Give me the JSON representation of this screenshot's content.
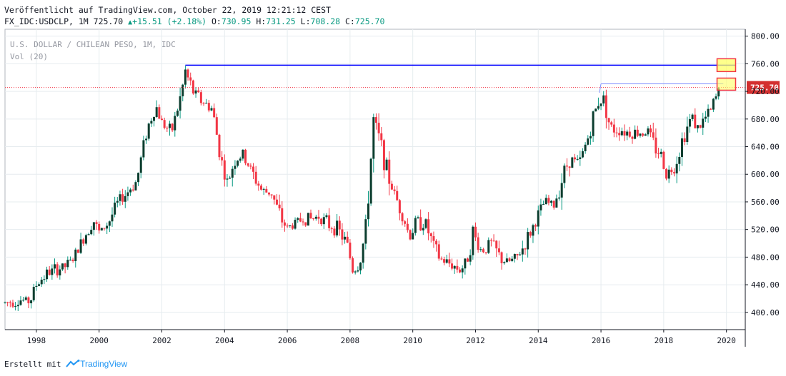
{
  "header": {
    "published": "Veröffentlicht auf TradingView.com, October 22, 2019 12:21:12 CEST",
    "symbol_interval": "FX_IDC:USDCLP, 1M",
    "last": "725.70",
    "change": "+15.51",
    "change_pct": "(+2.18%)",
    "o_label": "O:",
    "o_value": "730.95",
    "h_label": "H:",
    "h_value": "731.25",
    "l_label": "L:",
    "l_value": "708.28",
    "c_label": "C:",
    "c_value": "725.70"
  },
  "legend": {
    "title": "U.S. DOLLAR / CHILEAN PESO, 1M, IDC",
    "volume": "Vol (20)"
  },
  "footer": {
    "created_with": "Erstellt mit",
    "brand": "TradingView"
  },
  "colors": {
    "up": "#089981",
    "down": "#f23645",
    "candle_up_body": "#0b3d2e",
    "grid": "#e6ecef",
    "resistance_line": "#0000ff",
    "highlight_fill": "#ffff66",
    "highlight_border": "#f23645",
    "last_price_label": "#d32f2f"
  },
  "chart_data": {
    "type": "candlestick",
    "title": "U.S. DOLLAR / CHILEAN PESO, 1M, IDC",
    "x_ticks": [
      "1998",
      "2000",
      "2002",
      "2004",
      "2006",
      "2008",
      "2010",
      "2012",
      "2014",
      "2016",
      "2018",
      "2020"
    ],
    "y_ticks": [
      "800.00",
      "760.00",
      "720.00",
      "680.00",
      "640.00",
      "600.00",
      "560.00",
      "520.00",
      "480.00",
      "440.00",
      "400.00"
    ],
    "ylim": [
      375,
      810
    ],
    "xlim": [
      1997.0,
      2020.6
    ],
    "last_price": 725.7,
    "last_price_label": "725.70",
    "resistance_level": 758,
    "secondary_level": 731,
    "series_close": [
      [
        1997.0,
        414
      ],
      [
        1997.5,
        418
      ],
      [
        1997.8,
        416
      ],
      [
        1998.0,
        440
      ],
      [
        1998.3,
        455
      ],
      [
        1998.6,
        462
      ],
      [
        1998.9,
        466
      ],
      [
        1999.2,
        478
      ],
      [
        1999.5,
        506
      ],
      [
        1999.8,
        536
      ],
      [
        2000.0,
        515
      ],
      [
        2000.3,
        530
      ],
      [
        2000.6,
        560
      ],
      [
        2000.9,
        574
      ],
      [
        2001.2,
        590
      ],
      [
        2001.5,
        660
      ],
      [
        2001.8,
        700
      ],
      [
        2002.0,
        676
      ],
      [
        2002.3,
        660
      ],
      [
        2002.6,
        712
      ],
      [
        2002.75,
        748
      ],
      [
        2003.0,
        720
      ],
      [
        2003.3,
        705
      ],
      [
        2003.6,
        695
      ],
      [
        2003.9,
        620
      ],
      [
        2004.1,
        585
      ],
      [
        2004.3,
        620
      ],
      [
        2004.6,
        628
      ],
      [
        2004.9,
        600
      ],
      [
        2005.2,
        575
      ],
      [
        2005.5,
        573
      ],
      [
        2005.8,
        535
      ],
      [
        2006.0,
        522
      ],
      [
        2006.3,
        530
      ],
      [
        2006.5,
        536
      ],
      [
        2006.8,
        535
      ],
      [
        2007.0,
        540
      ],
      [
        2007.3,
        528
      ],
      [
        2007.6,
        520
      ],
      [
        2007.9,
        500
      ],
      [
        2008.1,
        460
      ],
      [
        2008.3,
        470
      ],
      [
        2008.5,
        520
      ],
      [
        2008.75,
        675
      ],
      [
        2009.0,
        640
      ],
      [
        2009.3,
        585
      ],
      [
        2009.6,
        550
      ],
      [
        2009.9,
        510
      ],
      [
        2010.1,
        530
      ],
      [
        2010.4,
        530
      ],
      [
        2010.7,
        490
      ],
      [
        2010.9,
        476
      ],
      [
        2011.2,
        470
      ],
      [
        2011.5,
        462
      ],
      [
        2011.7,
        470
      ],
      [
        2011.9,
        515
      ],
      [
        2012.2,
        488
      ],
      [
        2012.5,
        500
      ],
      [
        2012.8,
        478
      ],
      [
        2013.0,
        472
      ],
      [
        2013.3,
        478
      ],
      [
        2013.6,
        500
      ],
      [
        2013.9,
        530
      ],
      [
        2014.2,
        560
      ],
      [
        2014.5,
        555
      ],
      [
        2014.8,
        600
      ],
      [
        2015.0,
        622
      ],
      [
        2015.3,
        615
      ],
      [
        2015.6,
        655
      ],
      [
        2015.9,
        705
      ],
      [
        2016.1,
        710
      ],
      [
        2016.3,
        665
      ],
      [
        2016.6,
        665
      ],
      [
        2016.9,
        660
      ],
      [
        2017.2,
        660
      ],
      [
        2017.5,
        662
      ],
      [
        2017.7,
        640
      ],
      [
        2017.9,
        630
      ],
      [
        2018.1,
        600
      ],
      [
        2018.3,
        608
      ],
      [
        2018.6,
        650
      ],
      [
        2018.9,
        685
      ],
      [
        2019.1,
        665
      ],
      [
        2019.3,
        680
      ],
      [
        2019.5,
        692
      ],
      [
        2019.65,
        710
      ],
      [
        2019.8,
        726
      ]
    ]
  }
}
